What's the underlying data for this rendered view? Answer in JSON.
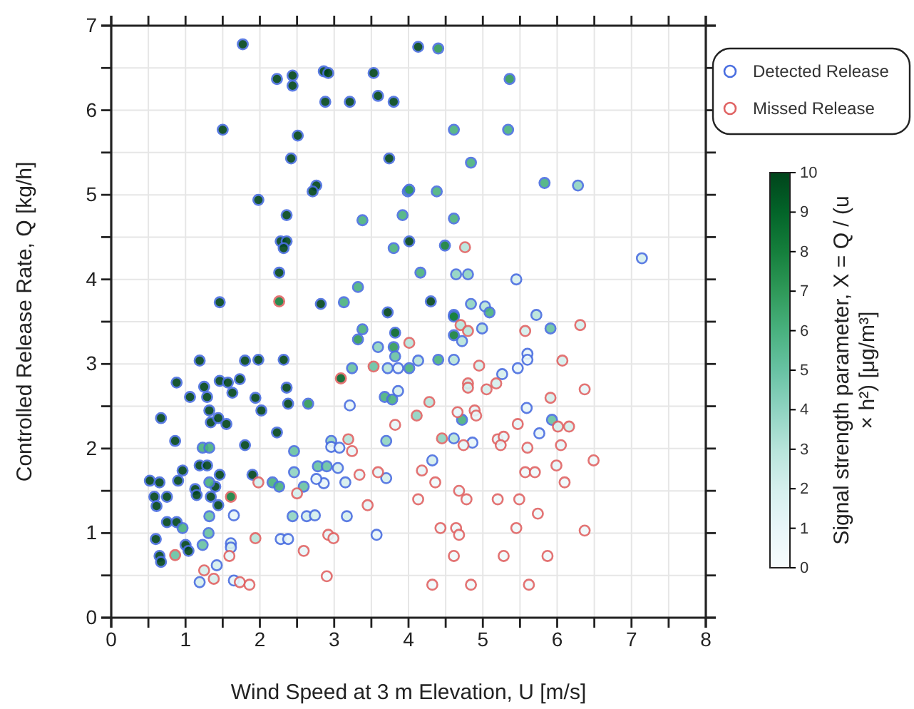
{
  "chart_data": {
    "type": "scatter",
    "xlabel": "Wind Speed at 3 m Elevation, U [m/s]",
    "ylabel": "Controlled Release Rate, Q [kg/h]",
    "clabel": "Signal strength parameter, X = Q / (u × h²) [μg/m³]",
    "xlim": [
      0,
      8
    ],
    "ylim": [
      0,
      7
    ],
    "xticks": [
      0,
      {
        "value": 0.5,
        "label": null
      },
      1,
      {
        "value": 1.5,
        "label": null
      },
      2,
      {
        "value": 2.5,
        "label": null
      },
      3,
      {
        "value": 3.5,
        "label": null
      },
      4,
      {
        "value": 4.5,
        "label": null
      },
      5,
      {
        "value": 5.5,
        "label": null
      },
      6,
      {
        "value": 6.5,
        "label": null
      },
      7,
      {
        "value": 7.5,
        "label": null
      },
      8
    ],
    "yticks": [
      0,
      {
        "value": 0.5,
        "label": null
      },
      1,
      {
        "value": 1.5,
        "label": null
      },
      2,
      {
        "value": 2.5,
        "label": null
      },
      3,
      {
        "value": 3.5,
        "label": null
      },
      4,
      {
        "value": 4.5,
        "label": null
      },
      5,
      {
        "value": 5.5,
        "label": null
      },
      6,
      {
        "value": 6.5,
        "label": null
      },
      7
    ],
    "clim": [
      0,
      10
    ],
    "cticks": [
      0,
      1,
      2,
      3,
      4,
      5,
      6,
      7,
      8,
      9,
      10
    ],
    "grid": true,
    "legend": "top right",
    "marker": "circle",
    "series": [
      {
        "name": "Detected Release",
        "color": "#4a6ee0",
        "x": [
          1.77,
          2.23,
          2.44,
          2.44,
          2.86,
          2.92,
          3.53,
          2.88,
          3.21,
          3.59,
          3.8,
          1.5,
          2.51,
          2.42,
          3.74,
          2.76,
          2.71,
          1.98,
          2.36,
          2.28,
          2.36,
          2.32,
          4.01,
          2.26,
          1.46,
          2.82,
          3.72,
          4.13,
          4.3,
          3.38,
          3.92,
          3.99,
          3.8,
          3.32,
          3.13,
          4.4,
          5.36,
          4.61,
          5.34,
          4.84,
          5.83,
          6.28,
          4.01,
          4.38,
          4.61,
          4.49,
          4.16,
          4.64,
          4.8,
          4.84,
          5.03,
          5.09,
          4.61,
          5.72,
          5.45,
          7.14,
          1.19,
          1.8,
          1.98,
          2.32,
          0.88,
          1.25,
          1.46,
          1.57,
          1.73,
          1.63,
          1.06,
          1.29,
          1.94,
          2.36,
          2.38,
          2.02,
          1.32,
          0.67,
          1.34,
          1.44,
          1.55,
          2.23,
          0.86,
          1.8,
          1.19,
          1.29,
          0.96,
          0.52,
          0.65,
          0.9,
          1.46,
          1.13,
          1.15,
          1.4,
          0.58,
          0.75,
          0.61,
          1.44,
          0.75,
          0.88,
          0.6,
          1.0,
          1.04,
          0.65,
          0.67,
          1.9,
          1.34,
          2.65,
          1.23,
          1.32,
          1.32,
          0.96,
          1.32,
          1.31,
          1.23,
          2.17,
          2.26,
          2.46,
          2.46,
          2.44,
          2.59,
          2.78,
          2.9,
          2.96,
          3.24,
          3.32,
          3.38,
          3.59,
          3.68,
          3.78,
          3.7,
          3.82,
          3.8,
          3.82,
          4.01,
          1.61,
          1.61,
          1.42,
          1.19,
          1.65,
          1.65,
          2.63,
          2.74,
          2.28,
          2.38,
          2.86,
          2.76,
          2.96,
          3.07,
          3.05,
          3.15,
          3.17,
          3.21,
          3.7,
          3.57,
          3.72,
          3.86,
          3.86,
          4.61,
          4.61,
          4.72,
          4.99,
          5.91,
          4.13,
          4.4,
          4.61,
          5.26,
          5.47,
          5.6,
          5.6,
          4.72,
          5.59,
          5.93,
          5.76,
          4.61,
          4.86,
          4.32
        ],
        "values": [
          6.78,
          6.37,
          6.41,
          6.29,
          6.46,
          6.44,
          6.44,
          6.1,
          6.1,
          6.17,
          6.1,
          5.77,
          5.7,
          5.43,
          5.43,
          5.11,
          5.04,
          4.94,
          4.76,
          4.45,
          4.45,
          4.37,
          4.45,
          4.08,
          3.73,
          3.71,
          3.61,
          6.75,
          3.74,
          4.7,
          4.76,
          5.04,
          4.37,
          3.91,
          3.73,
          6.73,
          6.37,
          5.77,
          5.77,
          5.38,
          5.14,
          5.11,
          5.06,
          5.04,
          4.72,
          4.4,
          4.08,
          4.06,
          4.06,
          3.71,
          3.68,
          3.61,
          3.58,
          3.58,
          4.0,
          4.25,
          3.04,
          3.04,
          3.05,
          3.05,
          2.78,
          2.73,
          2.8,
          2.78,
          2.82,
          2.66,
          2.61,
          2.61,
          2.6,
          2.72,
          2.53,
          2.45,
          2.45,
          2.36,
          2.31,
          2.36,
          2.29,
          2.19,
          2.09,
          2.04,
          1.8,
          1.8,
          1.74,
          1.62,
          1.6,
          1.62,
          1.69,
          1.52,
          1.45,
          1.55,
          1.43,
          1.43,
          1.32,
          1.33,
          1.13,
          1.13,
          0.93,
          0.86,
          0.79,
          0.73,
          0.66,
          1.69,
          1.43,
          2.53,
          2.01,
          2.01,
          1.6,
          1.06,
          1.2,
          1.0,
          0.86,
          1.6,
          1.55,
          1.97,
          1.72,
          1.2,
          1.55,
          1.79,
          1.79,
          2.09,
          2.95,
          3.29,
          3.41,
          3.2,
          2.61,
          2.58,
          2.09,
          3.37,
          3.2,
          3.09,
          2.95,
          0.88,
          0.83,
          0.62,
          0.42,
          0.44,
          1.21,
          1.2,
          1.21,
          0.93,
          0.93,
          1.59,
          1.64,
          2.02,
          2.01,
          1.77,
          1.6,
          1.2,
          2.51,
          1.65,
          0.98,
          2.95,
          2.95,
          2.68,
          3.56,
          3.34,
          3.27,
          3.42,
          3.42,
          3.04,
          3.05,
          3.05,
          2.88,
          2.95,
          3.12,
          3.05,
          2.34,
          2.48,
          2.34,
          2.18,
          2.12,
          2.07,
          1.86
        ],
        "cvalues": [
          10,
          10,
          10,
          10,
          10,
          10,
          10,
          10,
          10,
          10,
          10,
          10,
          10,
          10,
          10,
          10,
          10,
          10,
          10,
          10,
          10,
          10,
          10,
          10,
          10,
          10,
          10,
          10,
          10,
          6,
          6,
          6,
          6,
          6,
          6,
          7,
          7,
          6,
          6,
          6,
          6,
          4,
          7,
          6,
          6,
          8,
          6,
          4,
          4,
          4,
          3,
          6,
          7,
          3,
          2,
          2,
          10,
          10,
          10,
          10,
          10,
          10,
          10,
          10,
          10,
          10,
          10,
          10,
          10,
          10,
          10,
          10,
          10,
          10,
          10,
          10,
          10,
          10,
          10,
          10,
          10,
          10,
          10,
          10,
          10,
          10,
          10,
          10,
          10,
          10,
          10,
          10,
          10,
          10,
          10,
          10,
          10,
          10,
          10,
          10,
          10,
          10,
          10,
          7,
          6,
          6,
          6,
          6,
          5,
          5,
          5,
          6,
          6,
          5,
          4,
          4,
          5,
          5,
          5,
          4,
          5,
          7,
          6,
          4,
          6,
          6,
          4,
          9,
          7,
          5,
          6,
          2,
          2,
          2,
          2,
          1,
          1,
          2,
          2,
          1,
          1,
          1,
          1,
          1,
          1,
          2,
          2,
          2,
          1,
          2,
          1,
          3,
          1,
          2,
          8,
          8,
          3,
          3,
          5,
          3,
          6,
          3,
          2,
          1,
          1,
          1,
          6,
          1,
          5,
          1,
          3,
          1,
          2
        ]
      },
      {
        "name": "Missed Release",
        "color": "#e06464",
        "x": [
          2.26,
          4.76,
          1.61,
          0.86,
          1.59,
          1.25,
          1.38,
          1.73,
          1.86,
          1.98,
          1.94,
          2.5,
          2.59,
          3.19,
          3.24,
          3.34,
          2.92,
          2.99,
          2.9,
          3.09,
          3.53,
          3.45,
          3.59,
          3.82,
          4.01,
          4.7,
          4.8,
          5.57,
          6.31,
          4.95,
          6.07,
          4.8,
          4.8,
          5.05,
          5.18,
          6.37,
          4.28,
          4.11,
          4.66,
          4.89,
          4.91,
          5.91,
          5.47,
          6.01,
          6.16,
          4.45,
          4.74,
          5.2,
          5.28,
          5.24,
          5.6,
          6.05,
          6.49,
          4.18,
          5.57,
          5.7,
          5.99,
          4.36,
          6.1,
          4.68,
          4.13,
          4.78,
          5.2,
          5.49,
          5.74,
          4.43,
          4.64,
          4.68,
          5.45,
          6.37,
          4.61,
          5.28,
          5.87,
          4.32,
          4.84,
          5.62
        ],
        "values": [
          3.74,
          4.38,
          1.43,
          0.74,
          0.73,
          0.56,
          0.46,
          0.42,
          0.39,
          1.6,
          0.94,
          1.47,
          0.79,
          2.11,
          1.97,
          1.69,
          0.98,
          0.94,
          0.49,
          2.83,
          2.97,
          1.33,
          1.72,
          2.28,
          3.25,
          3.46,
          3.39,
          3.39,
          3.46,
          2.98,
          3.04,
          2.77,
          2.72,
          2.7,
          2.77,
          2.7,
          2.55,
          2.39,
          2.43,
          2.45,
          2.39,
          2.6,
          2.29,
          2.26,
          2.26,
          2.12,
          2.04,
          2.11,
          2.14,
          2.04,
          2.01,
          2.04,
          1.86,
          1.74,
          1.72,
          1.72,
          1.8,
          1.6,
          1.6,
          1.5,
          1.4,
          1.4,
          1.4,
          1.4,
          1.23,
          1.06,
          1.06,
          0.98,
          1.06,
          1.03,
          0.73,
          0.73,
          0.73,
          0.39,
          0.39,
          0.39
        ],
        "cvalues": [
          8,
          3,
          8,
          5,
          1,
          2,
          2,
          1,
          0.5,
          2,
          3,
          2,
          1,
          3,
          1,
          1,
          1,
          1,
          0.5,
          9,
          5,
          1,
          1,
          1,
          3,
          3,
          3,
          2,
          2,
          2,
          2,
          2,
          2,
          2,
          2,
          1,
          3,
          4,
          1,
          1,
          1,
          2,
          1,
          2,
          2,
          4,
          1,
          1,
          1,
          1,
          1,
          1,
          0.5,
          1,
          0.5,
          0.5,
          1,
          0.5,
          0.5,
          1,
          0.5,
          0.5,
          0.5,
          0.5,
          0.5,
          0.5,
          0.5,
          0.5,
          0.5,
          0.5,
          0.5,
          0.5,
          0.5,
          0.5,
          0.5,
          0.5
        ]
      }
    ]
  }
}
